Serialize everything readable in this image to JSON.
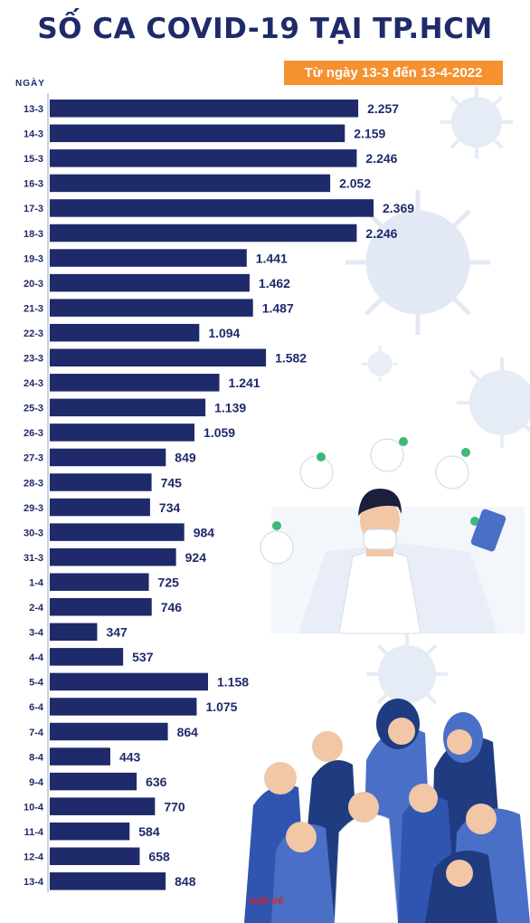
{
  "header": {
    "title": "SỐ CA COVID-19 TẠI TP.HCM",
    "subtitle": "Từ ngày 13-3 đến 13-4-2022"
  },
  "colors": {
    "bar": "#1f2a6b",
    "title": "#1f2a6b",
    "subtitle_bg": "#f5912f",
    "virus": "#e3e9f4",
    "person_dark": "#203c80",
    "person_light": "#4a6fc7"
  },
  "watermark": "tuổi trẻ",
  "chart_data": {
    "type": "bar",
    "orientation": "horizontal",
    "title": "SỐ CA COVID-19 TẠI TP.HCM",
    "subtitle": "Từ ngày 13-3 đến 13-4-2022",
    "ylabel": "NGÀY",
    "xlabel": "",
    "categories": [
      "13-3",
      "14-3",
      "15-3",
      "16-3",
      "17-3",
      "18-3",
      "19-3",
      "20-3",
      "21-3",
      "22-3",
      "23-3",
      "24-3",
      "25-3",
      "26-3",
      "27-3",
      "28-3",
      "29-3",
      "30-3",
      "31-3",
      "1-4",
      "2-4",
      "3-4",
      "4-4",
      "5-4",
      "6-4",
      "7-4",
      "8-4",
      "9-4",
      "10-4",
      "11-4",
      "12-4",
      "13-4"
    ],
    "values": [
      2257,
      2159,
      2246,
      2052,
      2369,
      2246,
      1441,
      1462,
      1487,
      1094,
      1582,
      1241,
      1139,
      1059,
      849,
      745,
      734,
      984,
      924,
      725,
      746,
      347,
      537,
      1158,
      1075,
      864,
      443,
      636,
      770,
      584,
      658,
      848
    ],
    "value_labels": [
      "2.257",
      "2.159",
      "2.246",
      "2.052",
      "2.369",
      "2.246",
      "1.441",
      "1.462",
      "1.487",
      "1.094",
      "1.582",
      "1.241",
      "1.139",
      "1.059",
      "849",
      "745",
      "734",
      "984",
      "924",
      "725",
      "746",
      "347",
      "537",
      "1.158",
      "1.075",
      "864",
      "443",
      "636",
      "770",
      "584",
      "658",
      "848"
    ],
    "grid": false,
    "legend": "none"
  }
}
